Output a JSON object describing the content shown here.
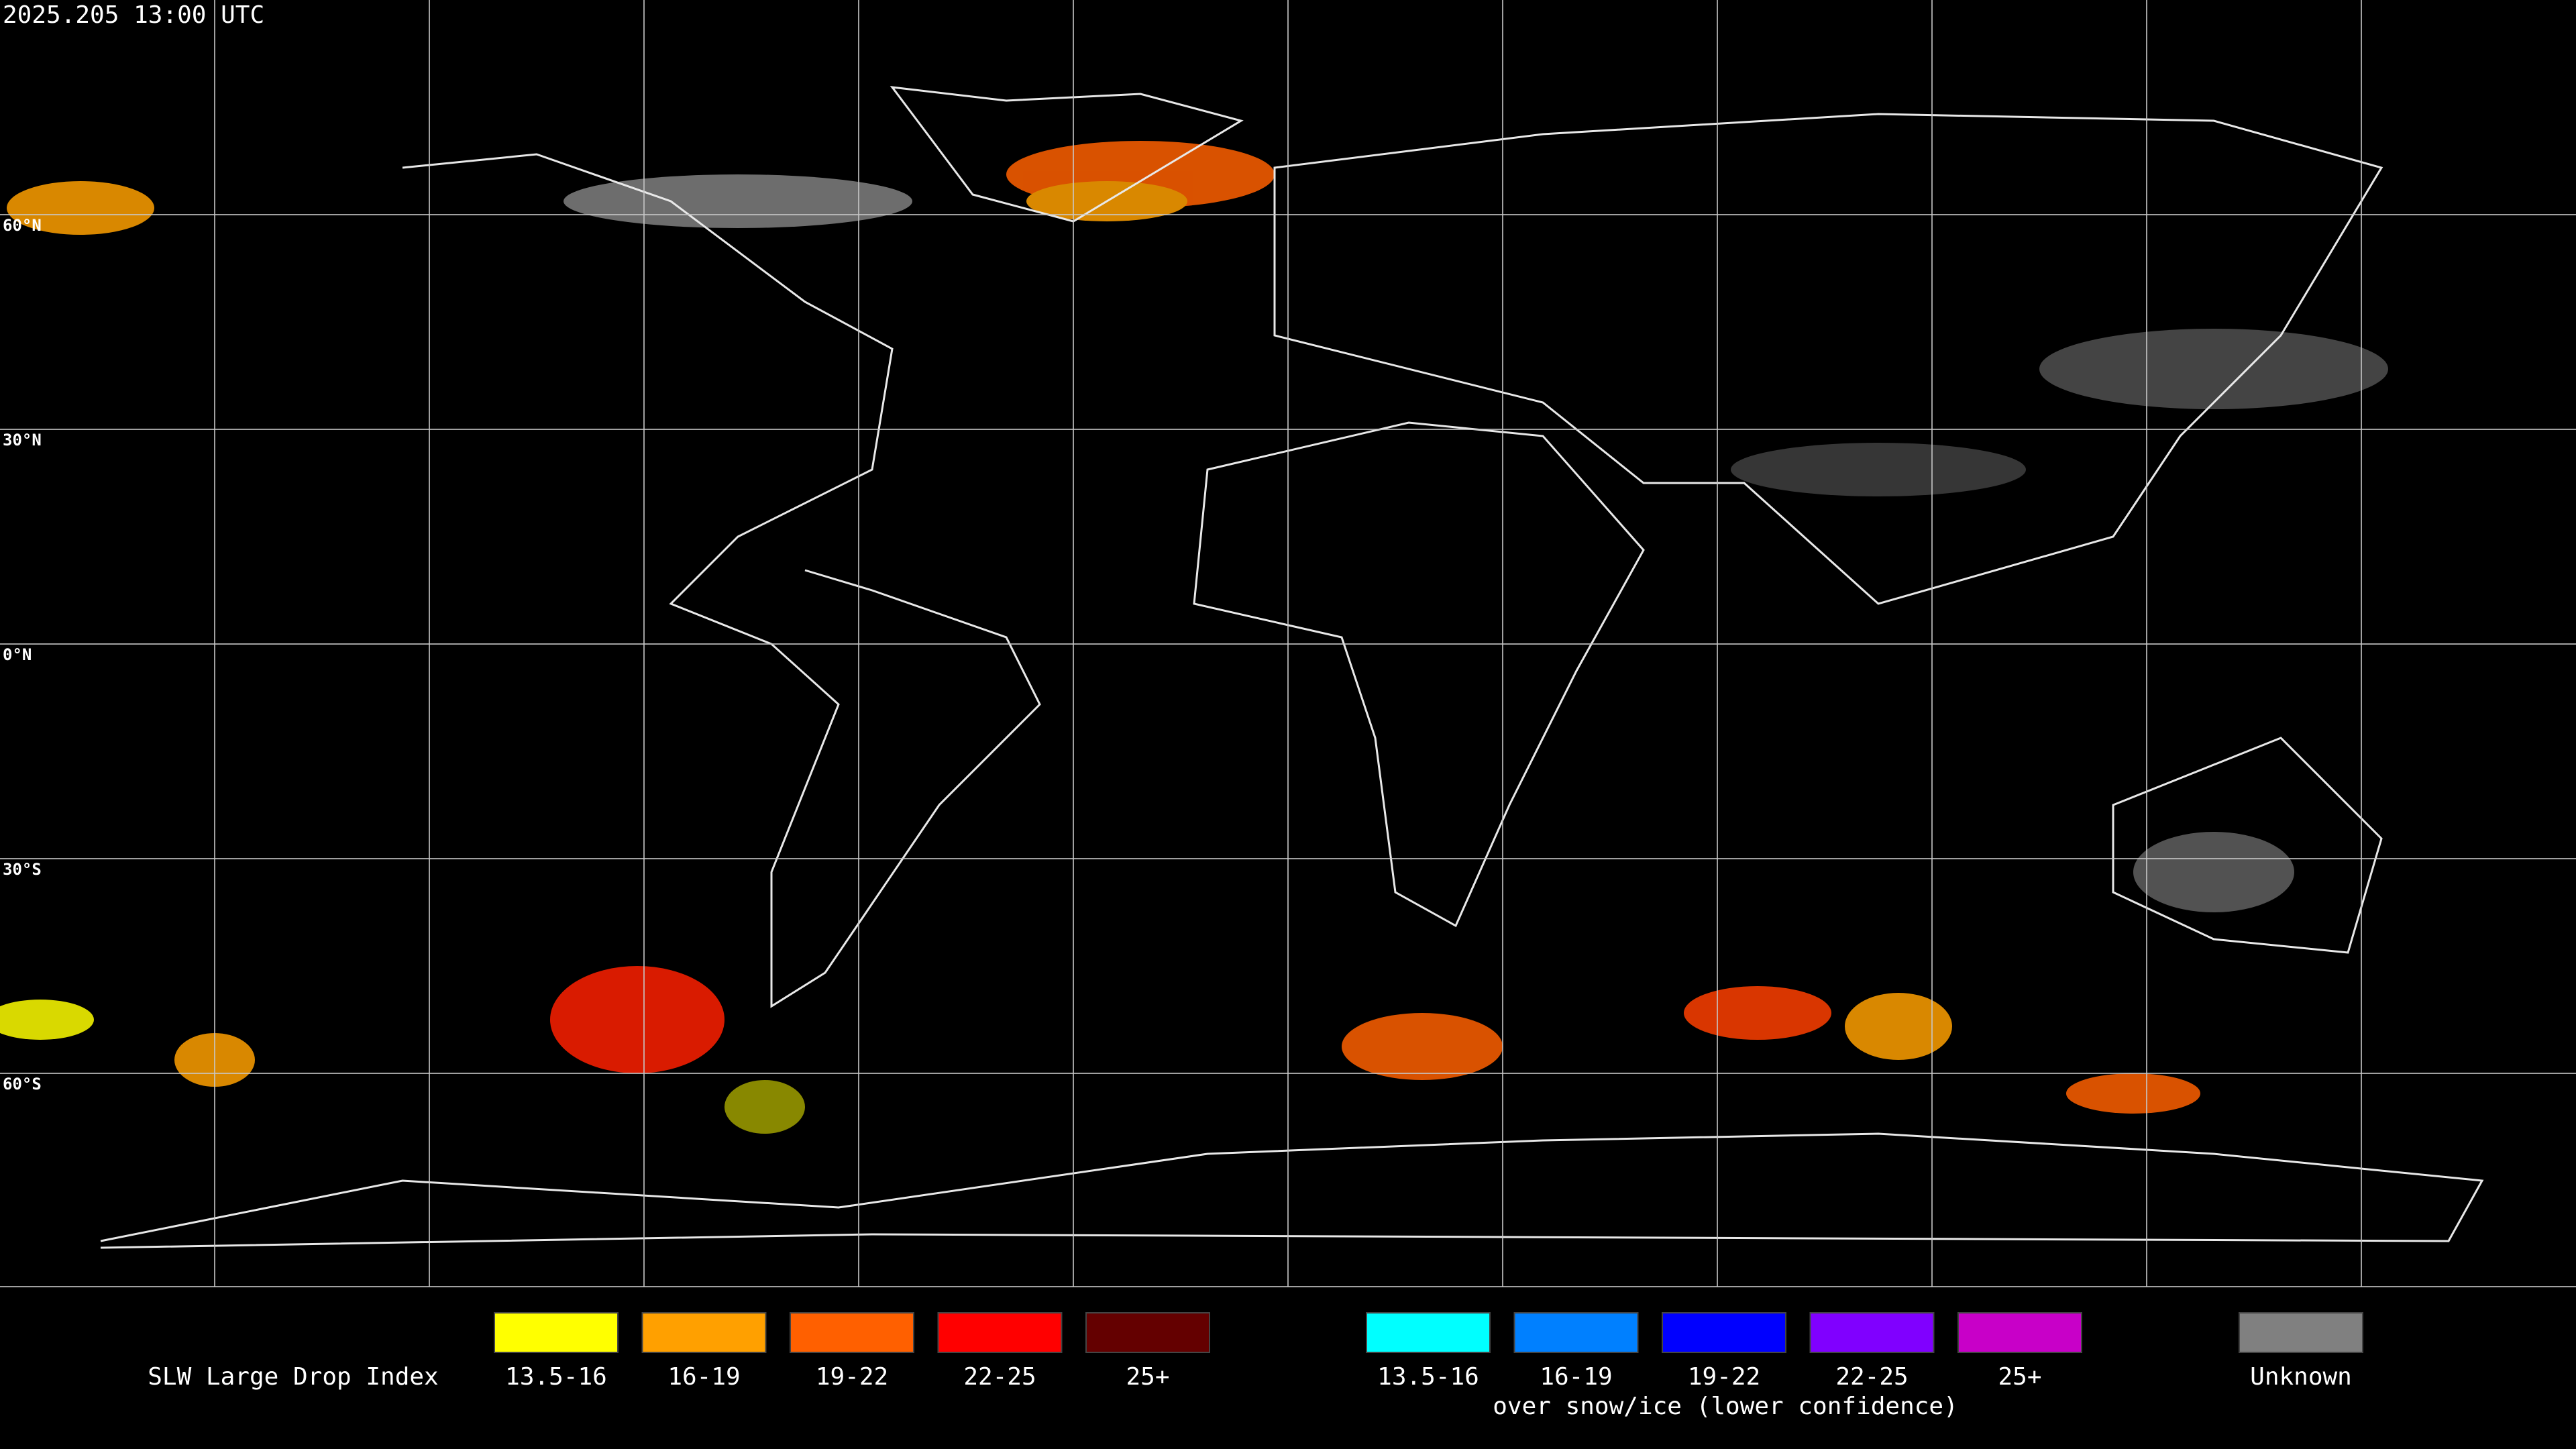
{
  "header": {
    "timestamp": "2025.205 13:00 UTC"
  },
  "grid": {
    "latitude_labels": [
      "60°N",
      "30°N",
      "0°N",
      "30°S",
      "60°S"
    ]
  },
  "legend": {
    "title": "SLW Large Drop Index",
    "groups": [
      {
        "items": [
          {
            "label": "13.5-16",
            "color": "#ffff00"
          },
          {
            "label": "16-19",
            "color": "#ffa000"
          },
          {
            "label": "19-22",
            "color": "#ff6000"
          },
          {
            "label": "22-25",
            "color": "#ff0000"
          },
          {
            "label": "25+",
            "color": "#640000"
          }
        ]
      },
      {
        "items": [
          {
            "label": "13.5-16",
            "color": "#00ffff"
          },
          {
            "label": "16-19",
            "color": "#0080ff"
          },
          {
            "label": "19-22",
            "color": "#0000ff"
          },
          {
            "label": "22-25",
            "color": "#8000ff"
          },
          {
            "label": "25+",
            "color": "#c800c8"
          }
        ],
        "caption": "over snow/ice (lower confidence)"
      },
      {
        "items": [
          {
            "label": "Unknown",
            "color": "#808080"
          }
        ]
      }
    ]
  }
}
